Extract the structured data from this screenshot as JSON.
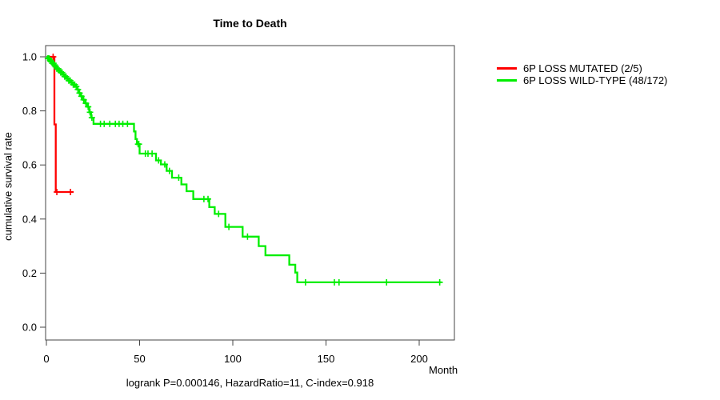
{
  "title": "Time to Death",
  "footer": "logrank P=0.000146, HazardRatio=11, C-index=0.918",
  "axes": {
    "x": {
      "label": "Month",
      "ticks": [
        0,
        50,
        100,
        150,
        200
      ],
      "tick_labels": [
        "0",
        "50",
        "100",
        "150",
        "200"
      ]
    },
    "y": {
      "label": "cumulative survival rate",
      "ticks": [
        0,
        0.2,
        0.4,
        0.6,
        0.8,
        1.0
      ],
      "tick_labels": [
        "0.0",
        "0.2",
        "0.4",
        "0.6",
        "0.8",
        "1.0"
      ]
    }
  },
  "legend": {
    "items": [
      {
        "label": "6P LOSS MUTATED (2/5)",
        "color": "#ff0000"
      },
      {
        "label": "6P LOSS WILD-TYPE (48/172)",
        "color": "#00ee00"
      }
    ]
  },
  "colors": {
    "box": "#444444",
    "text": "#000000",
    "background": "#ffffff"
  },
  "chart_data": {
    "type": "line",
    "subtype": "kaplan-meier-step",
    "title": "Time to Death",
    "xlabel": "Month",
    "ylabel": "cumulative survival rate",
    "xlim": [
      0,
      219
    ],
    "ylim": [
      0,
      1
    ],
    "grid": false,
    "legend_position": "right-outside",
    "series": [
      {
        "name": "6P LOSS MUTATED (2/5)",
        "color": "#ff0000",
        "start": [
          0,
          1.0
        ],
        "events": [
          [
            4.3,
            0.75
          ],
          [
            5.0,
            0.5
          ]
        ],
        "end_time": 14.6,
        "censor_times": [
          3.6,
          5.6,
          12.9
        ]
      },
      {
        "name": "6P LOSS WILD-TYPE (48/172)",
        "color": "#00ee00",
        "start": [
          0,
          1.0
        ],
        "events": [
          [
            0.8,
            0.994
          ],
          [
            1.6,
            0.988
          ],
          [
            2.4,
            0.982
          ],
          [
            3.2,
            0.976
          ],
          [
            4.0,
            0.97
          ],
          [
            4.8,
            0.963
          ],
          [
            5.6,
            0.956
          ],
          [
            6.6,
            0.949
          ],
          [
            7.6,
            0.942
          ],
          [
            8.6,
            0.935
          ],
          [
            9.6,
            0.927
          ],
          [
            10.6,
            0.92
          ],
          [
            11.8,
            0.912
          ],
          [
            13.0,
            0.905
          ],
          [
            14.2,
            0.897
          ],
          [
            15.4,
            0.89
          ],
          [
            16.4,
            0.879
          ],
          [
            17.4,
            0.866
          ],
          [
            18.4,
            0.854
          ],
          [
            19.6,
            0.841
          ],
          [
            20.8,
            0.828
          ],
          [
            22.0,
            0.815
          ],
          [
            23.0,
            0.795
          ],
          [
            24.0,
            0.775
          ],
          [
            25.3,
            0.752
          ],
          [
            47.0,
            0.724
          ],
          [
            47.8,
            0.696
          ],
          [
            48.6,
            0.677
          ],
          [
            50.0,
            0.642
          ],
          [
            58.8,
            0.617
          ],
          [
            61.4,
            0.602
          ],
          [
            64.5,
            0.578
          ],
          [
            67.4,
            0.553
          ],
          [
            72.4,
            0.528
          ],
          [
            75.2,
            0.503
          ],
          [
            78.8,
            0.474
          ],
          [
            87.4,
            0.444
          ],
          [
            90.3,
            0.419
          ],
          [
            96.0,
            0.371
          ],
          [
            105.3,
            0.335
          ],
          [
            113.9,
            0.3
          ],
          [
            117.5,
            0.266
          ],
          [
            130.3,
            0.231
          ],
          [
            133.5,
            0.202
          ],
          [
            134.6,
            0.166
          ]
        ],
        "end_time": 212,
        "censor_times": [
          0.8,
          1.4,
          2.0,
          2.6,
          3.2,
          3.8,
          4.4,
          5.0,
          5.6,
          6.3,
          7.0,
          7.7,
          8.4,
          9.1,
          9.8,
          10.5,
          11.2,
          12.0,
          12.8,
          13.6,
          14.4,
          15.2,
          16.0,
          16.9,
          17.8,
          18.8,
          20.0,
          21.2,
          22.4,
          23.4,
          24.4,
          29,
          31,
          34,
          37,
          39,
          41,
          43.5,
          49.2,
          49.6,
          53.1,
          54.5,
          56.7,
          60.2,
          63.5,
          66,
          71,
          84.5,
          86.7,
          92.4,
          97.9,
          107.9,
          139,
          154.5,
          157,
          182.5,
          211
        ]
      }
    ]
  }
}
